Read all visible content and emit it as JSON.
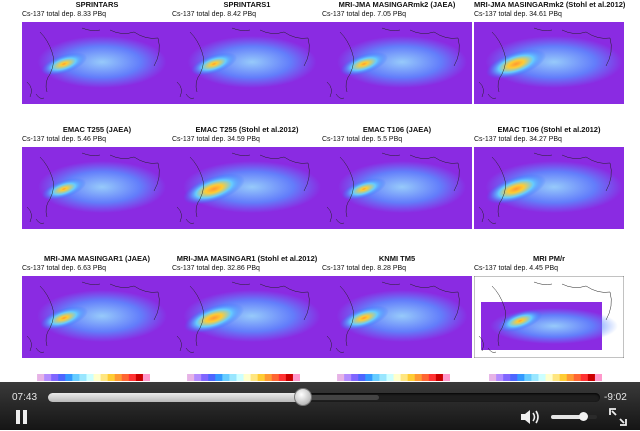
{
  "panels": [
    {
      "title": "SPRINTARS",
      "subtitle": "Cs-137 total dep. 8.33 PBq",
      "intensity": 0.45
    },
    {
      "title": "SPRINTARS1",
      "subtitle": "Cs-137 total dep. 8.42 PBq",
      "intensity": 0.45
    },
    {
      "title": "MRI-JMA MASINGARmk2 (JAEA)",
      "subtitle": "Cs-137 total dep. 7.05 PBq",
      "intensity": 0.5
    },
    {
      "title": "MRI-JMA MASINGARmk2 (Stohl et al.2012)",
      "subtitle": "Cs-137 total dep. 34.61 PBq",
      "intensity": 0.85
    },
    {
      "title": "EMAC T255 (JAEA)",
      "subtitle": "Cs-137 total dep. 5.46 PBq",
      "intensity": 0.4
    },
    {
      "title": "EMAC T255 (Stohl et al.2012)",
      "subtitle": "Cs-137 total dep. 34.59 PBq",
      "intensity": 0.9
    },
    {
      "title": "EMAC T106 (JAEA)",
      "subtitle": "Cs-137 total dep. 5.5 PBq",
      "intensity": 0.4
    },
    {
      "title": "EMAC T106 (Stohl et al.2012)",
      "subtitle": "Cs-137 total dep. 34.27 PBq",
      "intensity": 0.85
    },
    {
      "title": "MRI-JMA MASINGAR1 (JAEA)",
      "subtitle": "Cs-137 total dep. 6.63 PBq",
      "intensity": 0.5
    },
    {
      "title": "MRI-JMA MASINGAR1 (Stohl et al.2012)",
      "subtitle": "Cs-137 total dep. 32.86 PBq",
      "intensity": 0.85
    },
    {
      "title": "KNMI TM5",
      "subtitle": "Cs-137 total dep. 8.28 PBq",
      "intensity": 0.55
    },
    {
      "title": "MRI PM/r",
      "subtitle": "Cs-137 total dep. 4.45 PBq",
      "intensity": 0.4,
      "partial_domain": true
    }
  ],
  "colormap": [
    "#ffffff",
    "#e6b3e6",
    "#b38cff",
    "#8066ff",
    "#4d66ff",
    "#3399ff",
    "#66ccff",
    "#99e6ff",
    "#ccffff",
    "#ffffcc",
    "#ffe680",
    "#ffcc33",
    "#ff9933",
    "#ff6633",
    "#ff3333",
    "#cc0000",
    "#ff99cc"
  ],
  "colors": {
    "domain_background": "#8a2be2",
    "controls_bg": "#1f1f1f"
  },
  "player": {
    "elapsed": "07:43",
    "remaining": "-9:02",
    "progress": 0.46,
    "loaded": 0.6,
    "volume": 0.7,
    "play_icon": "pause-icon",
    "volume_icon": "speaker-icon",
    "fullscreen_icon": "fullscreen-icon"
  }
}
